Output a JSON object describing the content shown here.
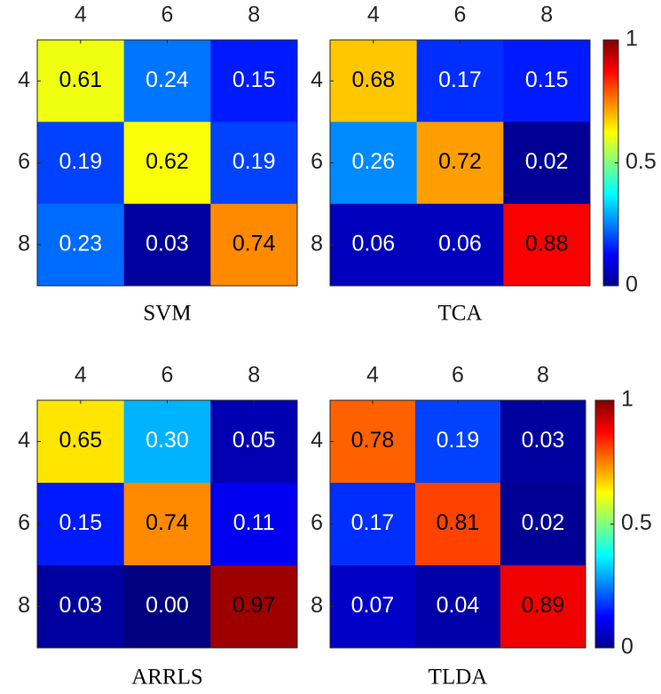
{
  "chart_data": [
    {
      "type": "heatmap",
      "title": "SVM",
      "x": [
        "4",
        "6",
        "8"
      ],
      "y": [
        "4",
        "6",
        "8"
      ],
      "colormap": "jet",
      "clim": [
        0,
        1
      ],
      "colorbar": false,
      "values": [
        [
          0.61,
          0.24,
          0.15
        ],
        [
          0.19,
          0.62,
          0.19
        ],
        [
          0.23,
          0.03,
          0.74
        ]
      ],
      "value_labels": [
        [
          "0.61",
          "0.24",
          "0.15"
        ],
        [
          "0.19",
          "0.62",
          "0.19"
        ],
        [
          "0.23",
          "0.03",
          "0.74"
        ]
      ]
    },
    {
      "type": "heatmap",
      "title": "TCA",
      "x": [
        "4",
        "6",
        "8"
      ],
      "y": [
        "4",
        "6",
        "8"
      ],
      "colormap": "jet",
      "clim": [
        0,
        1
      ],
      "colorbar": true,
      "cticks": [
        0,
        0.5,
        1
      ],
      "values": [
        [
          0.68,
          0.17,
          0.15
        ],
        [
          0.26,
          0.72,
          0.02
        ],
        [
          0.06,
          0.06,
          0.88
        ]
      ],
      "value_labels": [
        [
          "0.68",
          "0.17",
          "0.15"
        ],
        [
          "0.26",
          "0.72",
          "0.02"
        ],
        [
          "0.06",
          "0.06",
          "0.88"
        ]
      ]
    },
    {
      "type": "heatmap",
      "title": "ARRLS",
      "x": [
        "4",
        "6",
        "8"
      ],
      "y": [
        "4",
        "6",
        "8"
      ],
      "colormap": "jet",
      "clim": [
        0,
        1
      ],
      "colorbar": false,
      "values": [
        [
          0.65,
          0.3,
          0.05
        ],
        [
          0.15,
          0.74,
          0.11
        ],
        [
          0.03,
          0.0,
          0.97
        ]
      ],
      "value_labels": [
        [
          "0.65",
          "0.30",
          "0.05"
        ],
        [
          "0.15",
          "0.74",
          "0.11"
        ],
        [
          "0.03",
          "0.00",
          "0.97"
        ]
      ]
    },
    {
      "type": "heatmap",
      "title": "TLDA",
      "x": [
        "4",
        "6",
        "8"
      ],
      "y": [
        "4",
        "6",
        "8"
      ],
      "colormap": "jet",
      "clim": [
        0,
        1
      ],
      "colorbar": true,
      "cticks": [
        0,
        0.5,
        1
      ],
      "values": [
        [
          0.78,
          0.19,
          0.03
        ],
        [
          0.17,
          0.81,
          0.02
        ],
        [
          0.07,
          0.04,
          0.89
        ]
      ],
      "value_labels": [
        [
          "0.78",
          "0.19",
          "0.03"
        ],
        [
          "0.17",
          "0.81",
          "0.02"
        ],
        [
          "0.07",
          "0.04",
          "0.89"
        ]
      ]
    }
  ]
}
